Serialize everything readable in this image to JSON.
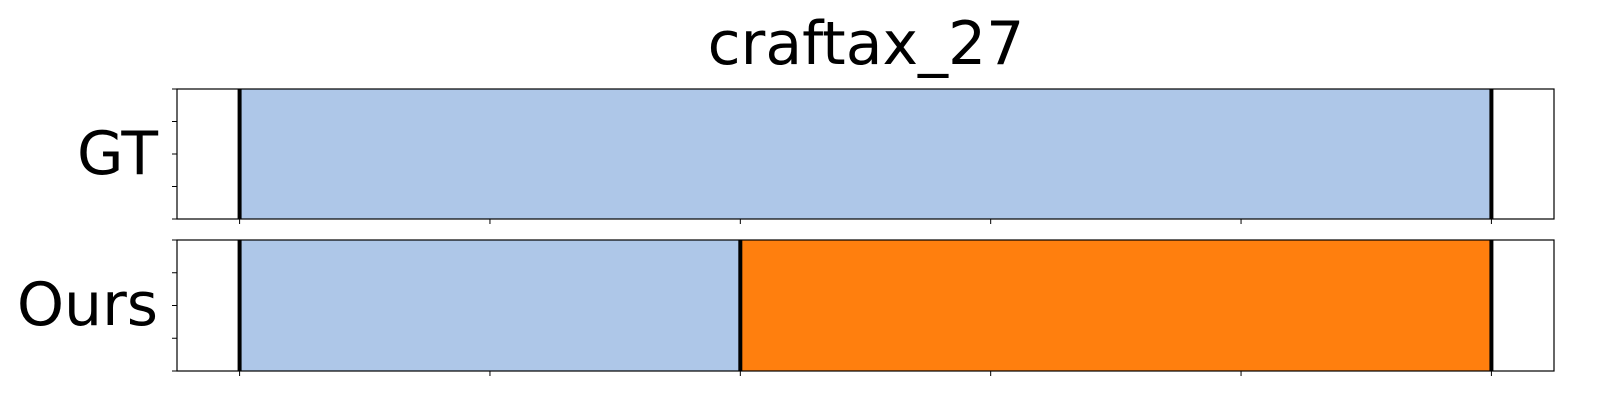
{
  "chart_data": {
    "type": "bar",
    "title": "craftax_27",
    "xlim": [
      0,
      5.5
    ],
    "x_ticks": [
      0.25,
      1.25,
      2.25,
      3.25,
      4.25,
      5.25
    ],
    "y_ticks_count": 5,
    "tick_labels_visible": false,
    "rows": [
      {
        "label": "GT",
        "segments": [
          {
            "start": 0.25,
            "end": 5.25,
            "color": "#aec7e8"
          }
        ],
        "boundaries": [
          0.25,
          5.25
        ]
      },
      {
        "label": "Ours",
        "segments": [
          {
            "start": 0.25,
            "end": 2.25,
            "color": "#aec7e8"
          },
          {
            "start": 2.25,
            "end": 5.25,
            "color": "#ff7f0e"
          }
        ],
        "boundaries": [
          0.25,
          2.25,
          5.25
        ]
      }
    ]
  }
}
